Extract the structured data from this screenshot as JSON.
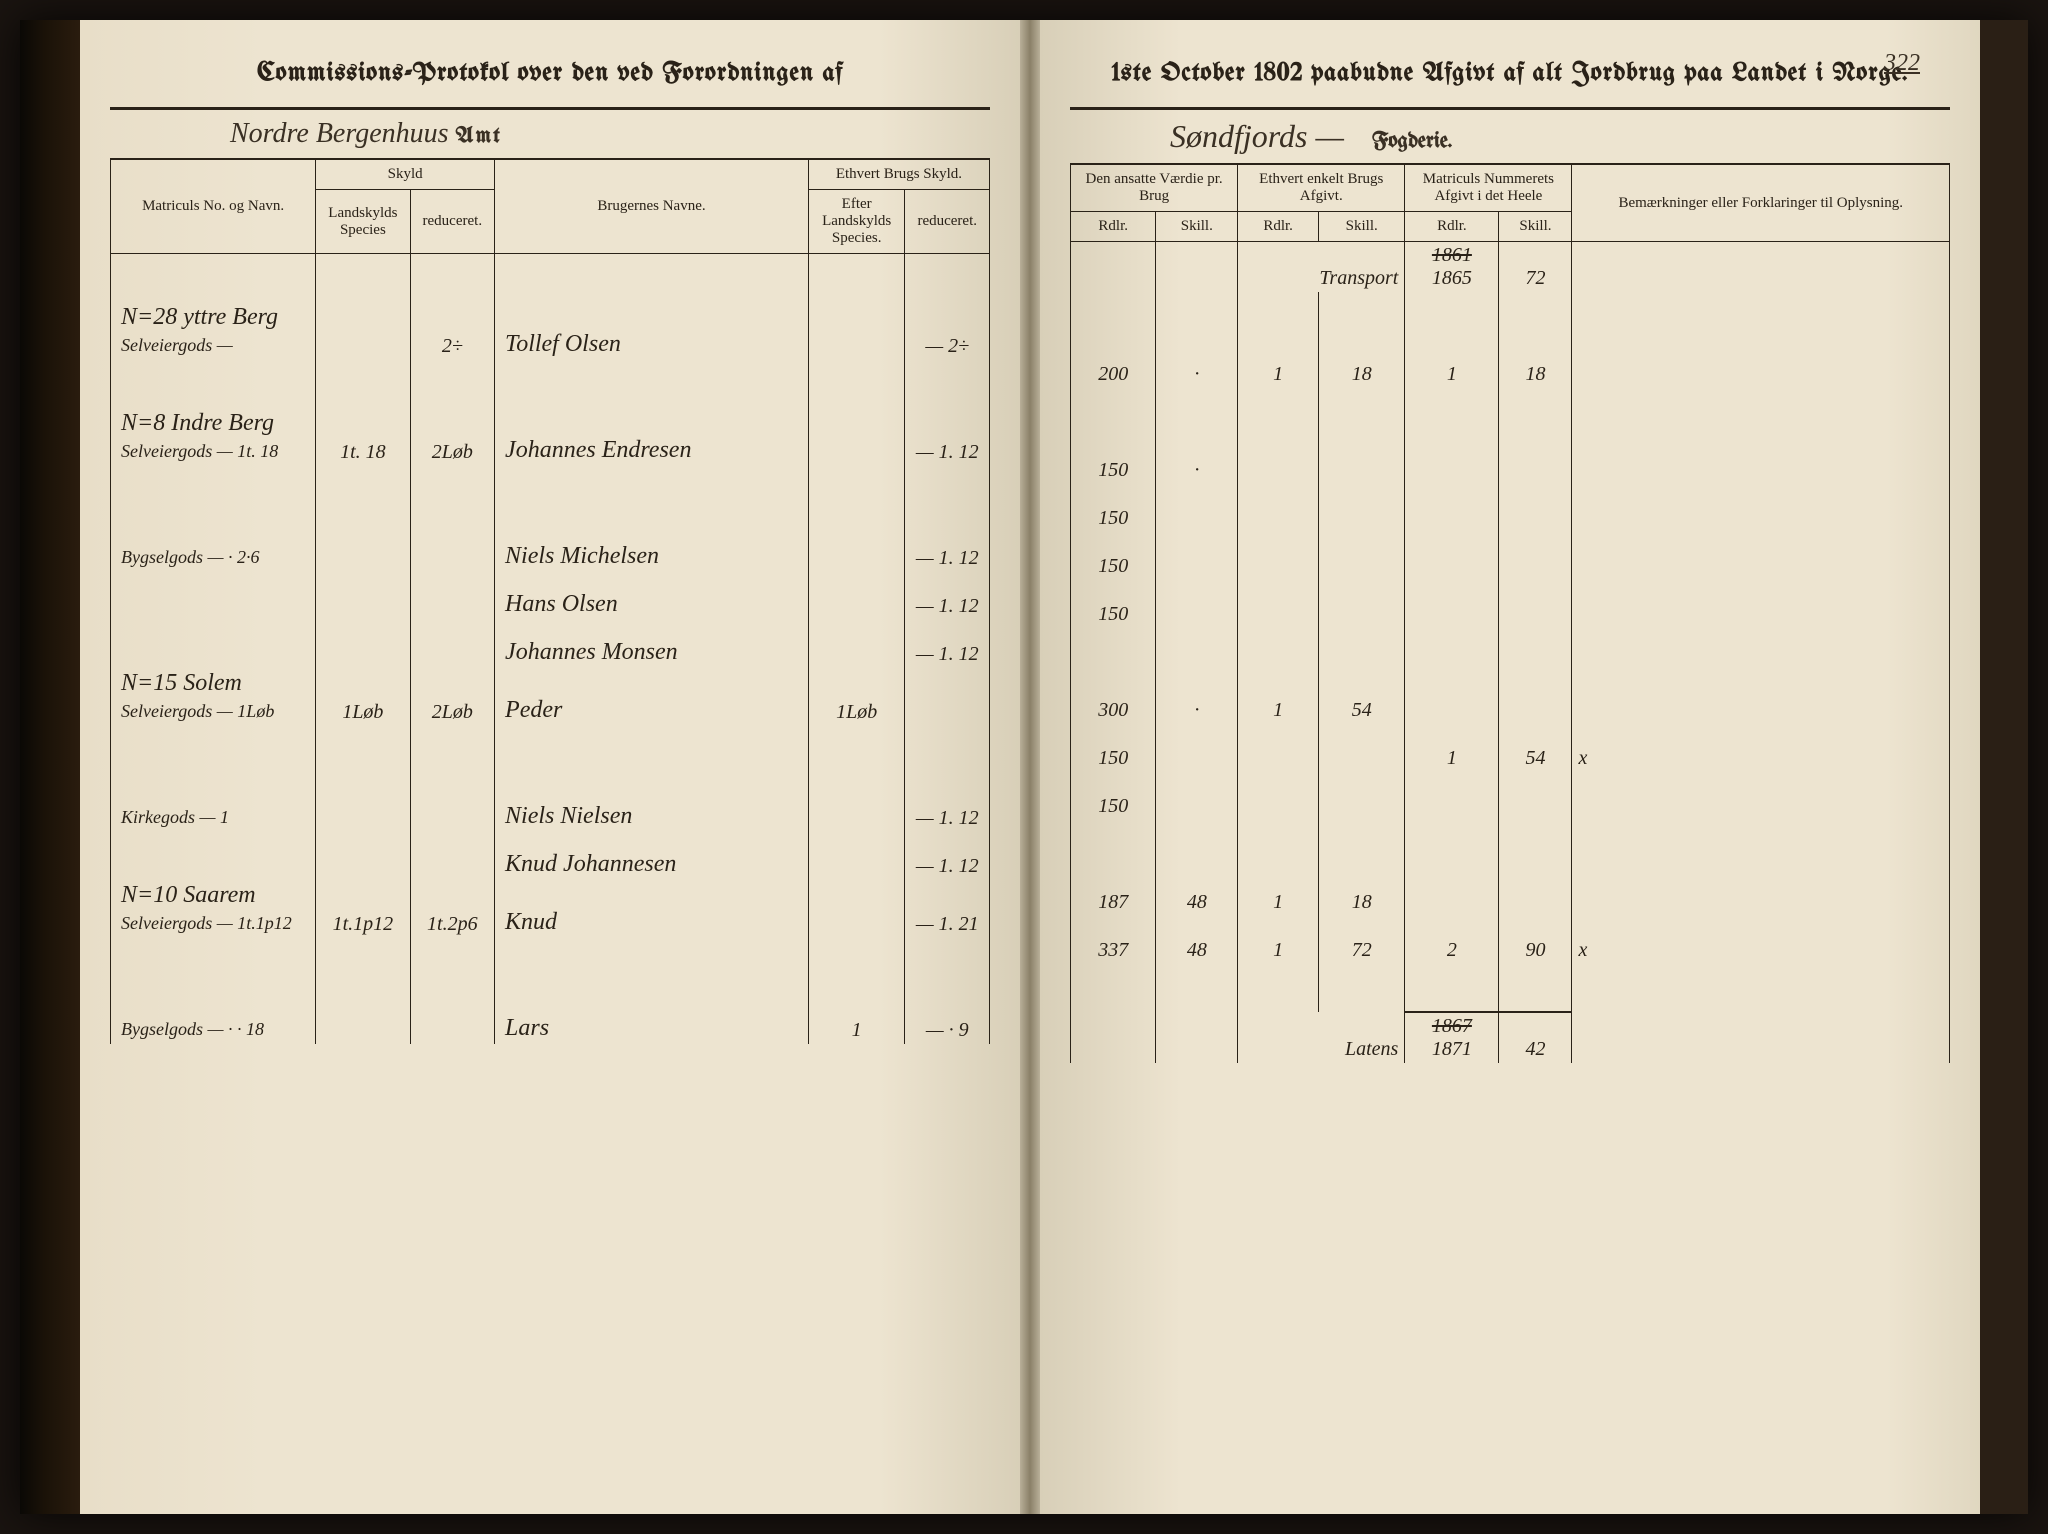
{
  "page_number": "322",
  "left": {
    "header": "Commissions-Protokol over den ved Forordningen af",
    "region": "Nordre Bergenhuus",
    "region_suffix": "Amt",
    "columns": {
      "col1": "Matriculs No. og Navn.",
      "col2_group": "Skyld",
      "col2a": "Landskylds Species",
      "col2b": "reduceret.",
      "col3": "Brugernes Navne.",
      "col4_group": "Ethvert Brugs Skyld.",
      "col4a": "Efter Landskylds Species.",
      "col4b": "reduceret."
    },
    "rows": [
      {
        "no": "N=28 yttre Berg",
        "sub": "Selveiergods —",
        "sk1": "",
        "sk2": "2÷",
        "name": "Tollef Olsen",
        "b1": "",
        "b2": "— 2÷"
      },
      {
        "no": "N=8 Indre Berg",
        "sub": "Selveiergods — 1t. 18",
        "sk1": "1t. 18",
        "sk2": "2Løb",
        "name": "Johannes Endresen",
        "b1": "",
        "b2": "— 1. 12"
      },
      {
        "no": "",
        "sub": "Bygselgods — · 2·6",
        "sk1": "",
        "sk2": "",
        "name": "Niels Michelsen",
        "b1": "",
        "b2": "— 1. 12"
      },
      {
        "no": "",
        "sub": "",
        "sk1": "",
        "sk2": "",
        "name": "Hans Olsen",
        "b1": "",
        "b2": "— 1. 12"
      },
      {
        "no": "",
        "sub": "",
        "sk1": "",
        "sk2": "",
        "name": "Johannes Monsen",
        "b1": "",
        "b2": "— 1. 12"
      },
      {
        "no": "N=15 Solem",
        "sub": "Selveiergods — 1Løb",
        "sk1": "1Løb",
        "sk2": "2Løb",
        "name": "Peder",
        "b1": "1Løb",
        "b2": ""
      },
      {
        "no": "",
        "sub": "Kirkegods — 1",
        "sk1": "",
        "sk2": "",
        "name": "Niels Nielsen",
        "b1": "",
        "b2": "— 1. 12"
      },
      {
        "no": "",
        "sub": "",
        "sk1": "",
        "sk2": "",
        "name": "Knud Johannesen",
        "b1": "",
        "b2": "— 1. 12"
      },
      {
        "no": "N=10 Saarem",
        "sub": "Selveiergods — 1t.1p12",
        "sk1": "1t.1p12",
        "sk2": "1t.2p6",
        "name": "Knud",
        "b1": "",
        "b2": "— 1. 21"
      },
      {
        "no": "",
        "sub": "Bygselgods — · · 18",
        "sk1": "",
        "sk2": "",
        "name": "Lars",
        "b1": "1",
        "b2": "— · 9"
      }
    ]
  },
  "right": {
    "header": "1ste October 1802 paabudne Afgivt af alt Jordbrug paa Landet i Norge.",
    "region": "Søndfjords —",
    "region_suffix": "Fogderie.",
    "columns": {
      "c1": "Den ansatte Værdie pr. Brug",
      "c1a": "Rdlr.",
      "c1b": "Skill.",
      "c2": "Ethvert enkelt Brugs Afgivt.",
      "c2a": "Rdlr.",
      "c2b": "Skill.",
      "c3": "Matriculs Nummerets Afgivt i det Heele",
      "c3a": "Rdlr.",
      "c3b": "Skill.",
      "c4": "Bemærkninger eller Forklaringer til Oplysning."
    },
    "transport_label": "Transport",
    "transport_struck": "1861",
    "transport_val": "1865",
    "transport_sk": "72",
    "rows": [
      {
        "v": "200",
        "vs": "·",
        "r": "1",
        "rs": "18",
        "m": "1",
        "ms": "18",
        "note": ""
      },
      {
        "v": "150",
        "vs": "·",
        "r": "",
        "rs": "",
        "m": "",
        "ms": "",
        "note": ""
      },
      {
        "v": "150",
        "vs": "",
        "r": "",
        "rs": "",
        "m": "",
        "ms": "",
        "note": ""
      },
      {
        "v": "150",
        "vs": "",
        "r": "",
        "rs": "",
        "m": "",
        "ms": "",
        "note": ""
      },
      {
        "v": "150",
        "vs": "",
        "r": "",
        "rs": "",
        "m": "",
        "ms": "",
        "note": ""
      },
      {
        "v": "300",
        "vs": "·",
        "r": "1",
        "rs": "54",
        "m": "",
        "ms": "",
        "note": ""
      },
      {
        "v": "150",
        "vs": "",
        "r": "",
        "rs": "",
        "m": "1",
        "ms": "54",
        "note": "x"
      },
      {
        "v": "150",
        "vs": "",
        "r": "",
        "rs": "",
        "m": "",
        "ms": "",
        "note": ""
      },
      {
        "v": "187",
        "vs": "48",
        "r": "1",
        "rs": "18",
        "m": "",
        "ms": "",
        "note": ""
      },
      {
        "v": "337",
        "vs": "48",
        "r": "1",
        "rs": "72",
        "m": "2",
        "ms": "90",
        "note": "x"
      }
    ],
    "latens_label": "Latens",
    "latens_struck": "1867",
    "latens_val": "1871",
    "latens_sk": "42"
  },
  "colors": {
    "ink": "#2a2218",
    "paper": "#ede4d0",
    "binding": "#1a1208"
  }
}
